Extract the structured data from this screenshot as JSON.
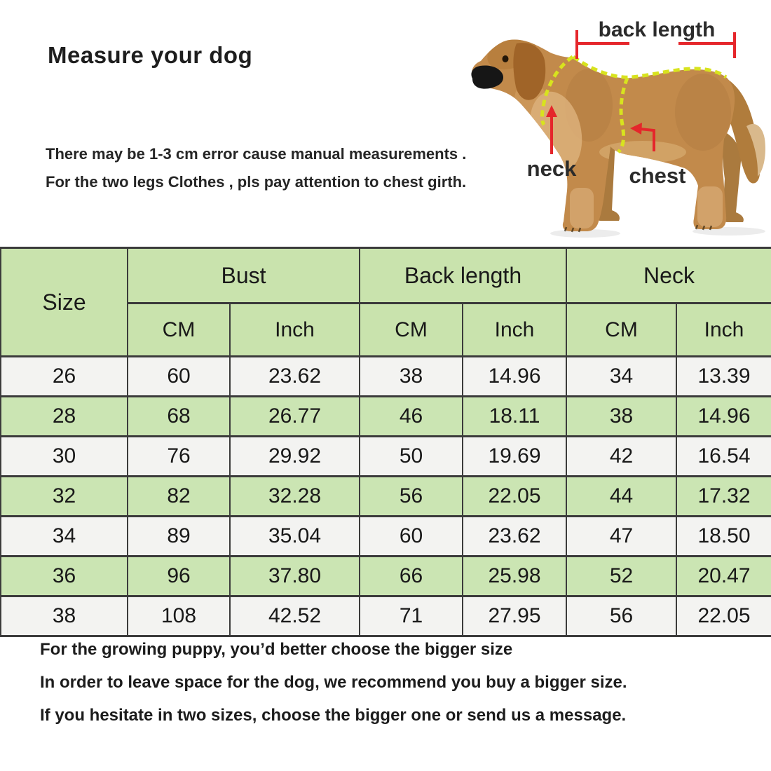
{
  "page": {
    "background": "#ffffff"
  },
  "header": {
    "title": "Measure your dog",
    "notes": [
      "There may be 1-3 cm error cause manual measurements .",
      "For the two legs Clothes , pls pay attention to chest girth."
    ]
  },
  "diagram": {
    "labels": {
      "back_length": "back length",
      "neck": "neck",
      "chest": "chest"
    },
    "colors": {
      "annotation_red": "#e5262b",
      "girth_dash_yellow": "#d8e31e",
      "label_text": "#2b2b2b",
      "dog_coat": "#c28a4b"
    }
  },
  "table": {
    "size_header": "Size",
    "groups": [
      "Bust",
      "Back length",
      "Neck"
    ],
    "sub_headers": [
      "CM",
      "Inch",
      "CM",
      "Inch",
      "CM",
      "Inch"
    ],
    "rows": [
      [
        "26",
        "60",
        "23.62",
        "38",
        "14.96",
        "34",
        "13.39"
      ],
      [
        "28",
        "68",
        "26.77",
        "46",
        "18.11",
        "38",
        "14.96"
      ],
      [
        "30",
        "76",
        "29.92",
        "50",
        "19.69",
        "42",
        "16.54"
      ],
      [
        "32",
        "82",
        "32.28",
        "56",
        "22.05",
        "44",
        "17.32"
      ],
      [
        "34",
        "89",
        "35.04",
        "60",
        "23.62",
        "47",
        "18.50"
      ],
      [
        "36",
        "96",
        "37.80",
        "66",
        "25.98",
        "52",
        "20.47"
      ],
      [
        "38",
        "108",
        "42.52",
        "71",
        "27.95",
        "56",
        "22.05"
      ]
    ],
    "colors": {
      "header_green": "#c9e3ad",
      "row_green": "#cbe5b3",
      "row_gray": "#f3f3f1",
      "border": "#3b3b3b"
    }
  },
  "footer": {
    "notes": [
      "For the growing puppy, you’d better choose the bigger size",
      "In order to leave space for the dog, we recommend you buy a bigger size.",
      "If you  hesitate in two sizes, choose the bigger one or send us a message."
    ]
  }
}
